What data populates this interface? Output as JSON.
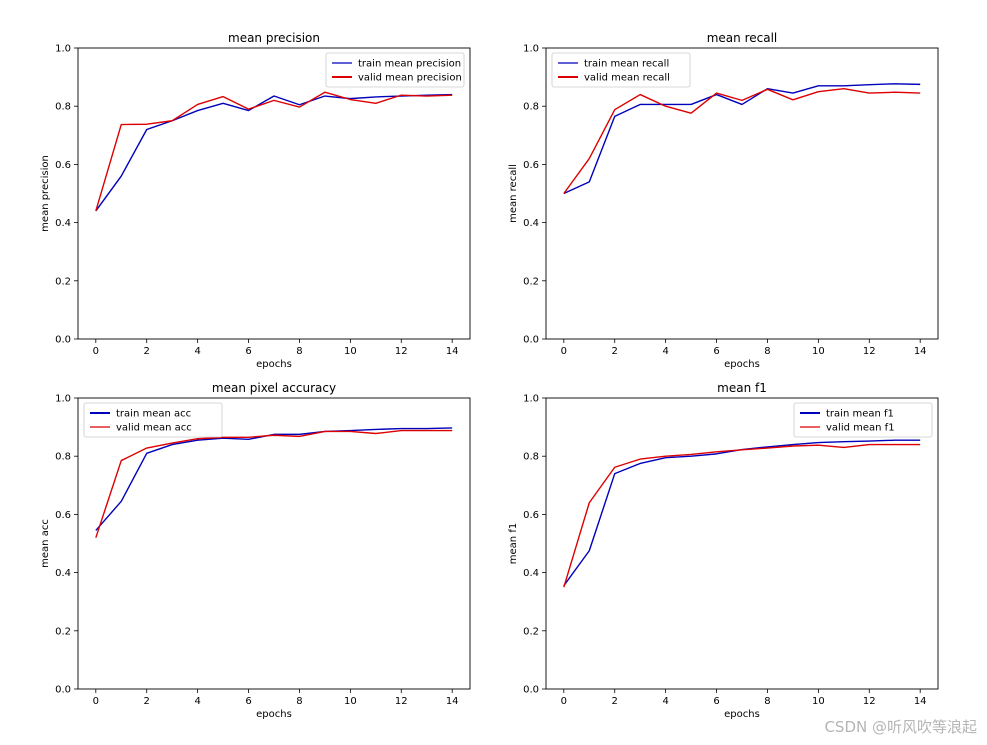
{
  "watermark": "CSDN @听风吹等浪起",
  "colors": {
    "train": "#0000bb",
    "valid": "#dd0000",
    "axis": "#000000",
    "text": "#000000"
  },
  "chart_data": [
    {
      "type": "line",
      "title": "mean precision",
      "xlabel": "epochs",
      "ylabel": "mean precision",
      "xlim": [
        -0.7,
        14.7
      ],
      "ylim": [
        0,
        1
      ],
      "xticks": [
        0,
        2,
        4,
        6,
        8,
        10,
        12,
        14
      ],
      "yticks": [
        0.0,
        0.2,
        0.4,
        0.6,
        0.8,
        1.0
      ],
      "legend_position": "upper right",
      "x": [
        0,
        1,
        2,
        3,
        4,
        5,
        6,
        7,
        8,
        9,
        10,
        11,
        12,
        13,
        14
      ],
      "series": [
        {
          "name": "train mean precision",
          "color": "#0000bb",
          "values": [
            0.44,
            0.56,
            0.72,
            0.75,
            0.785,
            0.81,
            0.785,
            0.835,
            0.805,
            0.835,
            0.826,
            0.832,
            0.835,
            0.838,
            0.84
          ]
        },
        {
          "name": "valid mean precision",
          "color": "#dd0000",
          "values": [
            0.44,
            0.737,
            0.738,
            0.75,
            0.806,
            0.833,
            0.79,
            0.82,
            0.797,
            0.848,
            0.823,
            0.81,
            0.838,
            0.835,
            0.838
          ]
        }
      ]
    },
    {
      "type": "line",
      "title": "mean recall",
      "xlabel": "epochs",
      "ylabel": "mean recall",
      "xlim": [
        -0.7,
        14.7
      ],
      "ylim": [
        0,
        1
      ],
      "xticks": [
        0,
        2,
        4,
        6,
        8,
        10,
        12,
        14
      ],
      "yticks": [
        0.0,
        0.2,
        0.4,
        0.6,
        0.8,
        1.0
      ],
      "legend_position": "upper left",
      "x": [
        0,
        1,
        2,
        3,
        4,
        5,
        6,
        7,
        8,
        9,
        10,
        11,
        12,
        13,
        14
      ],
      "series": [
        {
          "name": "train mean recall",
          "color": "#0000bb",
          "values": [
            0.5,
            0.54,
            0.765,
            0.806,
            0.806,
            0.806,
            0.84,
            0.806,
            0.86,
            0.845,
            0.87,
            0.87,
            0.874,
            0.877,
            0.875
          ]
        },
        {
          "name": "valid mean recall",
          "color": "#dd0000",
          "values": [
            0.5,
            0.62,
            0.788,
            0.84,
            0.8,
            0.776,
            0.845,
            0.82,
            0.858,
            0.822,
            0.85,
            0.86,
            0.845,
            0.848,
            0.845
          ]
        }
      ]
    },
    {
      "type": "line",
      "title": "mean pixel accuracy",
      "xlabel": "epochs",
      "ylabel": "mean acc",
      "xlim": [
        -0.7,
        14.7
      ],
      "ylim": [
        0,
        1
      ],
      "xticks": [
        0,
        2,
        4,
        6,
        8,
        10,
        12,
        14
      ],
      "yticks": [
        0.0,
        0.2,
        0.4,
        0.6,
        0.8,
        1.0
      ],
      "legend_position": "upper left",
      "x": [
        0,
        1,
        2,
        3,
        4,
        5,
        6,
        7,
        8,
        9,
        10,
        11,
        12,
        13,
        14
      ],
      "series": [
        {
          "name": "train mean acc",
          "color": "#0000bb",
          "values": [
            0.545,
            0.645,
            0.81,
            0.84,
            0.855,
            0.862,
            0.858,
            0.875,
            0.875,
            0.885,
            0.888,
            0.892,
            0.895,
            0.895,
            0.897
          ]
        },
        {
          "name": "valid mean acc",
          "color": "#dd0000",
          "values": [
            0.52,
            0.785,
            0.828,
            0.845,
            0.86,
            0.865,
            0.865,
            0.872,
            0.868,
            0.885,
            0.885,
            0.878,
            0.888,
            0.888,
            0.888
          ]
        }
      ]
    },
    {
      "type": "line",
      "title": "mean f1",
      "xlabel": "epochs",
      "ylabel": "mean f1",
      "xlim": [
        -0.7,
        14.7
      ],
      "ylim": [
        0,
        1
      ],
      "xticks": [
        0,
        2,
        4,
        6,
        8,
        10,
        12,
        14
      ],
      "yticks": [
        0.0,
        0.2,
        0.4,
        0.6,
        0.8,
        1.0
      ],
      "legend_position": "upper right",
      "x": [
        0,
        1,
        2,
        3,
        4,
        5,
        6,
        7,
        8,
        9,
        10,
        11,
        12,
        13,
        14
      ],
      "series": [
        {
          "name": "train mean f1",
          "color": "#0000bb",
          "values": [
            0.355,
            0.475,
            0.74,
            0.775,
            0.795,
            0.8,
            0.808,
            0.823,
            0.832,
            0.84,
            0.847,
            0.85,
            0.852,
            0.855,
            0.855
          ]
        },
        {
          "name": "valid mean f1",
          "color": "#dd0000",
          "values": [
            0.35,
            0.64,
            0.762,
            0.79,
            0.8,
            0.806,
            0.815,
            0.822,
            0.828,
            0.835,
            0.838,
            0.83,
            0.84,
            0.84,
            0.84
          ]
        }
      ]
    }
  ]
}
